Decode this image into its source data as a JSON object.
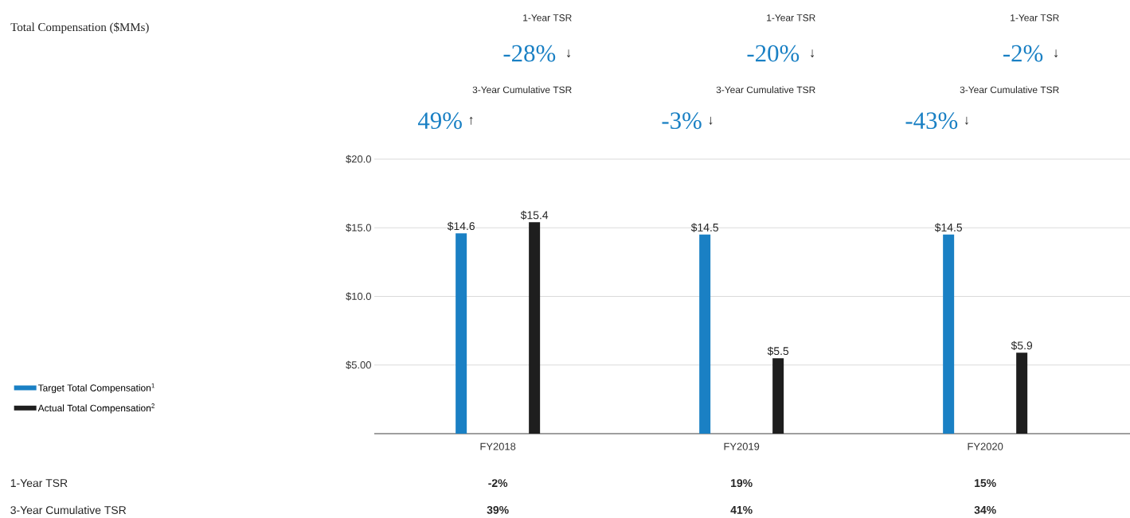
{
  "chart_data": {
    "type": "bar",
    "title": "Total Compensation ($MMs)",
    "categories": [
      "FY2018",
      "FY2019",
      "FY2020"
    ],
    "series": [
      {
        "name": "Target Total Compensation$^{1}$",
        "color": "#1a80c4",
        "values": [
          14.6,
          14.5,
          14.5
        ],
        "value_labels": [
          "$14.6",
          "$14.5",
          "$14.5"
        ]
      },
      {
        "name": "Actual Total Compensation$^{2}$",
        "color": "#1e1e1e",
        "values": [
          15.4,
          5.5,
          5.9
        ],
        "value_labels": [
          "$15.4",
          "$5.5",
          "$5.9"
        ]
      }
    ],
    "ylim": [
      0,
      20
    ],
    "yticks": [
      {
        "value": 5,
        "label": "$5.00"
      },
      {
        "value": 10,
        "label": "$10.0"
      },
      {
        "value": 15,
        "label": "$15.0"
      },
      {
        "value": 20,
        "label": "$20.0"
      }
    ],
    "grid": "y",
    "legend": "left",
    "annotations": [
      "1-Year TSR",
      "-28%",
      "↓",
      "3-Year Cumulative TSR",
      "49%",
      "↑",
      "1-Year TSR",
      "-20%",
      "↓",
      "3-Year Cumulative TSR",
      "-3%",
      "↓",
      "1-Year TSR",
      "-2%",
      "↓",
      "3-Year Cumulative TSR",
      "-43%",
      "↓",
      "1-Year TSR",
      "-2%",
      "19%",
      "15%",
      "3-Year Cumulative TSR",
      "39%",
      "41%",
      "34%"
    ]
  }
}
